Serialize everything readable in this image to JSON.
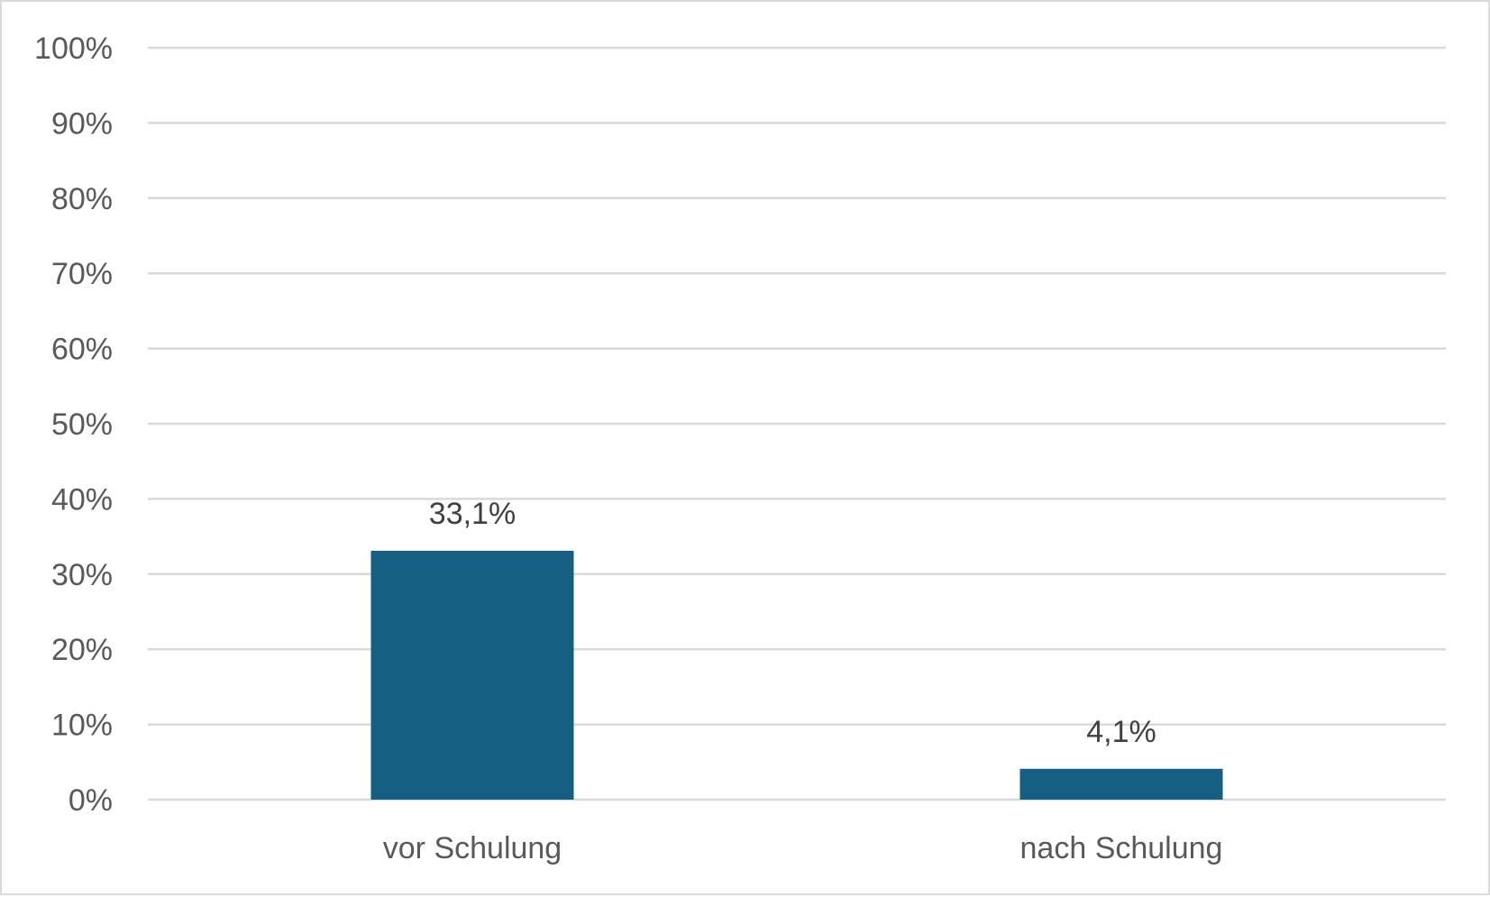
{
  "chart_data": {
    "type": "bar",
    "title": "",
    "xlabel": "",
    "ylabel": "",
    "categories": [
      "vor Schulung",
      "nach Schulung"
    ],
    "values": [
      33.1,
      4.1
    ],
    "data_labels": [
      "33,1%",
      "4,1%"
    ],
    "ylim": [
      0,
      100
    ],
    "y_ticks": [
      0,
      10,
      20,
      30,
      40,
      50,
      60,
      70,
      80,
      90,
      100
    ],
    "y_tick_labels": [
      "0%",
      "10%",
      "20%",
      "30%",
      "40%",
      "50%",
      "60%",
      "70%",
      "80%",
      "90%",
      "100%"
    ],
    "grid": true,
    "legend": "none",
    "colors": {
      "bar": "#156082",
      "grid": "#d9d9d9",
      "border": "#d9d9d9"
    }
  }
}
